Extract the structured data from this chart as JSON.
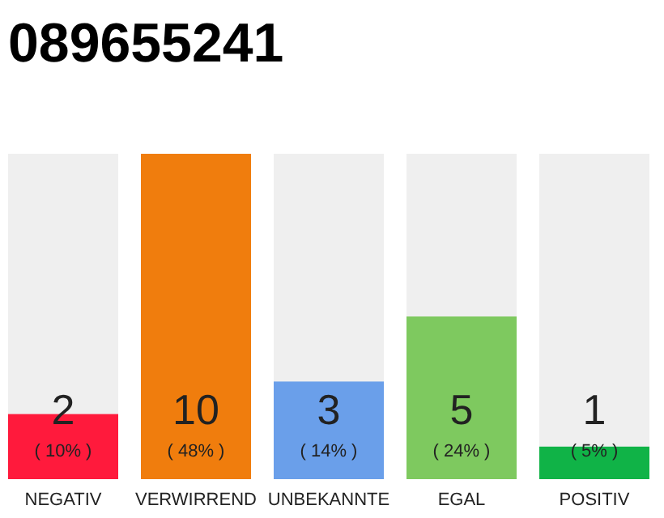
{
  "chart_data": {
    "type": "bar",
    "title": "089655241",
    "categories": [
      "NEGATIV",
      "VERWIRREND",
      "UNBEKANNTE",
      "EGAL",
      "POSITIV"
    ],
    "values": [
      2,
      10,
      3,
      5,
      1
    ],
    "colors": [
      "#ff1a3c",
      "#f07d0d",
      "#6a9fea",
      "#7ec95f",
      "#10b347"
    ],
    "ylim": [
      0,
      10
    ],
    "tick_labels": "x",
    "data_labels": true,
    "annotations": [
      "( 10% )",
      "( 48% )",
      "( 14% )",
      "( 24% )",
      "( 5% )"
    ]
  }
}
